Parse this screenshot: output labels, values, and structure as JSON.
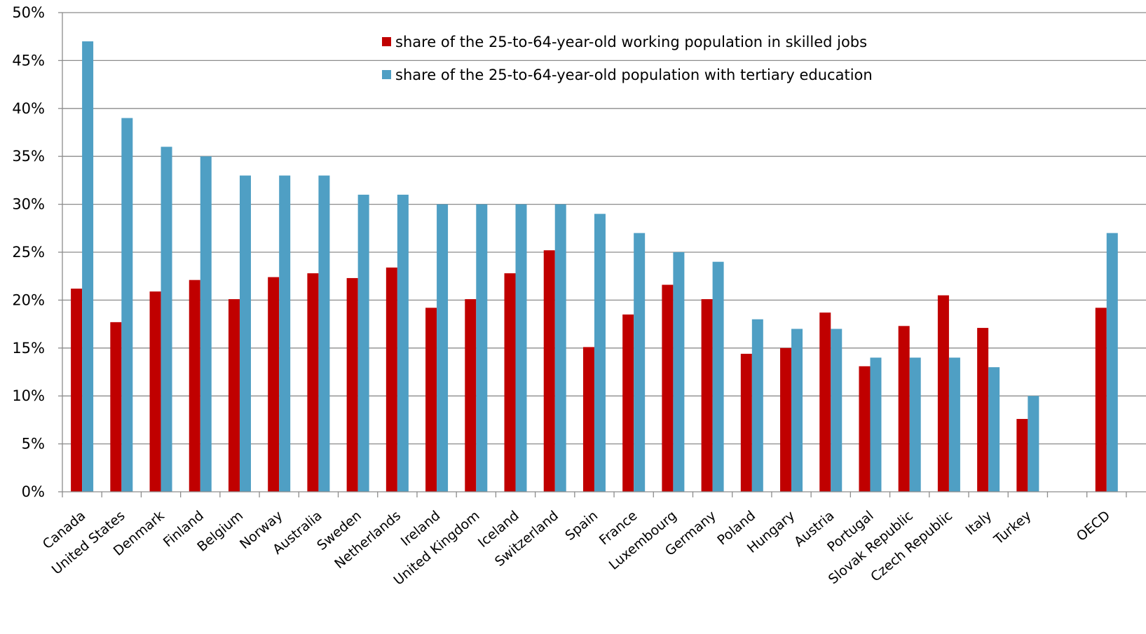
{
  "chart_data": {
    "type": "bar",
    "title": "",
    "xlabel": "",
    "ylabel": "",
    "ylim": [
      0,
      50
    ],
    "y_tick_labels": [
      "0%",
      "5%",
      "10%",
      "15%",
      "20%",
      "25%",
      "30%",
      "35%",
      "40%",
      "45%",
      "50%"
    ],
    "grid": true,
    "legend_position": "top-center",
    "categories": [
      "Canada",
      "United States",
      "Denmark",
      "Finland",
      "Belgium",
      "Norway",
      "Australia",
      "Sweden",
      "Netherlands",
      "Ireland",
      "United Kingdom",
      "Iceland",
      "Switzerland",
      "Spain",
      "France",
      "Luxembourg",
      "Germany",
      "Poland",
      "Hungary",
      "Austria",
      "Portugal",
      "Slovak Republic",
      "Czech Republic",
      "Italy",
      "Turkey",
      "",
      "OECD"
    ],
    "series": [
      {
        "name": "share of the 25-to-64-year-old working population in skilled jobs",
        "color": "#c00000",
        "values": [
          21.2,
          17.7,
          20.9,
          22.1,
          20.1,
          22.4,
          22.8,
          22.3,
          23.4,
          19.2,
          20.1,
          22.8,
          25.2,
          15.1,
          18.5,
          21.6,
          20.1,
          14.4,
          15.0,
          18.7,
          13.1,
          17.3,
          20.5,
          17.1,
          7.6,
          null,
          19.2
        ]
      },
      {
        "name": "share of the 25-to-64-year-old population with tertiary education",
        "color": "#4f9fc4",
        "values": [
          47,
          39,
          36,
          35,
          33,
          33,
          33,
          31,
          31,
          30,
          30,
          30,
          30,
          29,
          27,
          25,
          24,
          18,
          17,
          17,
          14,
          14,
          14,
          13,
          10,
          null,
          27
        ]
      }
    ]
  }
}
